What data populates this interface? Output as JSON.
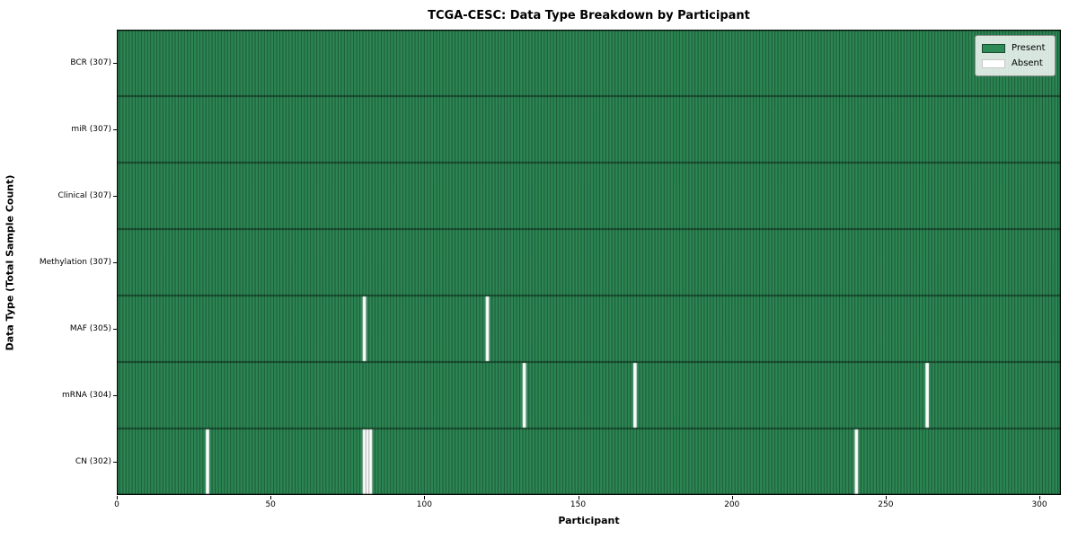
{
  "chart_data": {
    "type": "heatmap",
    "title": "TCGA-CESC: Data Type Breakdown by Participant",
    "xlabel": "Participant",
    "ylabel": "Data Type (Total Sample Count)",
    "x_ticks": [
      0,
      50,
      100,
      150,
      200,
      250,
      300
    ],
    "x_range": [
      0,
      307
    ],
    "n_participants": 307,
    "grid": false,
    "rows": [
      {
        "label": "BCR (307)",
        "data_type": "BCR",
        "present_count": 307,
        "absent_participants": []
      },
      {
        "label": "miR (307)",
        "data_type": "miR",
        "present_count": 307,
        "absent_participants": []
      },
      {
        "label": "Clinical (307)",
        "data_type": "Clinical",
        "present_count": 307,
        "absent_participants": []
      },
      {
        "label": "Methylation (307)",
        "data_type": "Methylation",
        "present_count": 307,
        "absent_participants": []
      },
      {
        "label": "MAF (305)",
        "data_type": "MAF",
        "present_count": 305,
        "absent_participants": [
          80,
          120
        ]
      },
      {
        "label": "mRNA (304)",
        "data_type": "mRNA",
        "present_count": 304,
        "absent_participants": [
          132,
          168,
          263
        ]
      },
      {
        "label": "CN (302)",
        "data_type": "CN",
        "present_count": 302,
        "absent_participants": [
          29,
          80,
          81,
          82,
          240
        ]
      }
    ],
    "legend": {
      "position": "upper right",
      "entries": [
        {
          "label": "Present",
          "color": "#2e8b57"
        },
        {
          "label": "Absent",
          "color": "#ffffff"
        }
      ]
    },
    "colors": {
      "present": "#2e8b57",
      "absent": "#ffffff",
      "cell_edge": "rgba(0,0,0,0.55)",
      "row_edge": "rgba(0,0,0,0.85)",
      "plot_border": "#000000"
    }
  }
}
